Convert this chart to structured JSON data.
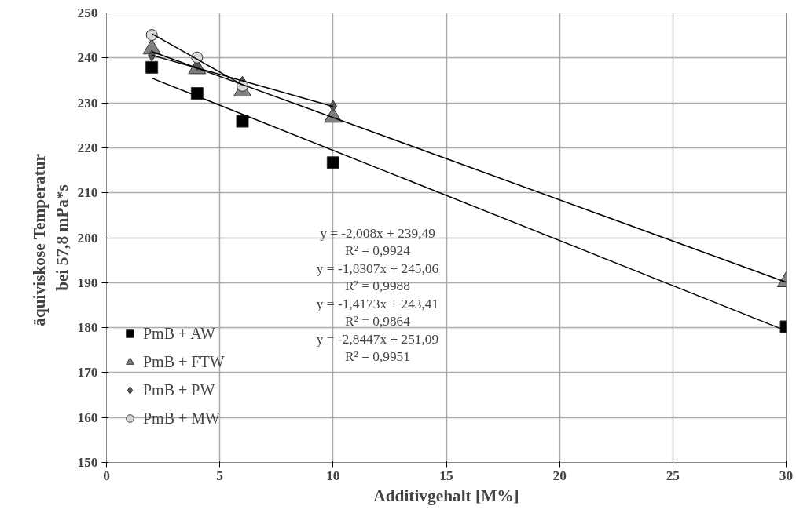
{
  "chart_data": {
    "type": "scatter",
    "xlabel": "Additivgehalt [M%]",
    "ylabel": "äquiviskose  Temperatur\nbei 57,8 mPa*s",
    "xlim": [
      0,
      30
    ],
    "xticks": [
      0,
      5,
      10,
      15,
      20,
      25,
      30
    ],
    "ylim": [
      150,
      250
    ],
    "yticks": [
      150,
      160,
      170,
      180,
      190,
      200,
      210,
      220,
      230,
      240,
      250
    ],
    "grid": true,
    "legend": "bottom left",
    "series": [
      {
        "name": "PmB + AW",
        "color": "#000000",
        "marker": "square",
        "x": [
          2,
          4,
          6,
          10,
          30
        ],
        "values": [
          237.9,
          232.1,
          225.9,
          216.7,
          180.2
        ]
      },
      {
        "name": "PmB + FTW",
        "color": "#808080",
        "marker": "triangle",
        "x": [
          2,
          4,
          6,
          10,
          30
        ],
        "values": [
          242,
          237.6,
          232.6,
          226.8,
          190.2
        ]
      },
      {
        "name": "PmB + PW",
        "color": "#595959",
        "marker": "diamond",
        "x": [
          2,
          4,
          6,
          10
        ],
        "values": [
          240.5,
          238.4,
          234.7,
          229.3
        ]
      },
      {
        "name": "PmB + MW",
        "color": "#d9d9d9",
        "marker": "circle",
        "x": [
          2,
          4,
          6
        ],
        "values": [
          245.1,
          240.1,
          233.8
        ]
      },
      {
        "type": "line",
        "color": "#000000",
        "x": [
          2,
          30
        ],
        "values": [
          235.5,
          179.3
        ]
      },
      {
        "type": "line",
        "color": "#000000",
        "x": [
          2,
          30
        ],
        "values": [
          241.4,
          190.1
        ]
      },
      {
        "type": "line",
        "color": "#000000",
        "x": [
          2,
          10
        ],
        "values": [
          240.6,
          229.2
        ]
      },
      {
        "type": "line",
        "color": "#000000",
        "x": [
          2,
          6
        ],
        "values": [
          245.4,
          234.0
        ]
      }
    ],
    "annotations": [
      "y = -2,008x + 239,49\nR² = 0,9924",
      "y = -1,8307x + 245,06\nR² = 0,9988",
      "y = -1,4173x + 243,41\nR² = 0,9864",
      "y = -2,8447x + 251,09\nR² = 0,9951"
    ]
  }
}
